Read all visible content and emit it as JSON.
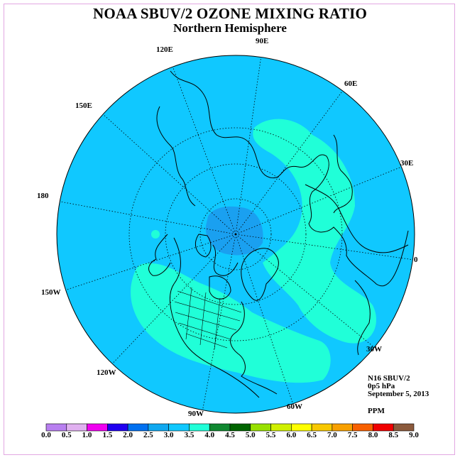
{
  "title": "NOAA SBUV/2 OZONE MIXING RATIO",
  "subtitle": "Northern Hemisphere",
  "info": {
    "satellite": "N16 SBUV/2",
    "level": "0p5 hPa",
    "date": "September 5, 2013",
    "units": "PPM"
  },
  "longitude_labels": [
    "90E",
    "60E",
    "30E",
    "0",
    "30W",
    "60W",
    "90W",
    "120W",
    "150W",
    "180",
    "150E",
    "120E"
  ],
  "colorbar": {
    "ticks": [
      "0.0",
      "0.5",
      "1.0",
      "1.5",
      "2.0",
      "2.5",
      "3.0",
      "3.5",
      "4.0",
      "4.5",
      "5.0",
      "5.5",
      "6.0",
      "6.5",
      "7.0",
      "7.5",
      "8.0",
      "8.5",
      "9.0"
    ],
    "colors": [
      "#b87ff0",
      "#e0b0f0",
      "#f000f0",
      "#2000f0",
      "#0070f0",
      "#10a8f0",
      "#10c8ff",
      "#20ffd8",
      "#108830",
      "#006400",
      "#98e000",
      "#d0f000",
      "#ffff00",
      "#f8c800",
      "#f8a000",
      "#f86000",
      "#f00000",
      "#8b5a3c"
    ]
  },
  "field_colors": {
    "background_level": "#10c8ff",
    "higher_level": "#20ffd8",
    "lower_level": "#1aa0f0",
    "land_outline": "#000000"
  }
}
